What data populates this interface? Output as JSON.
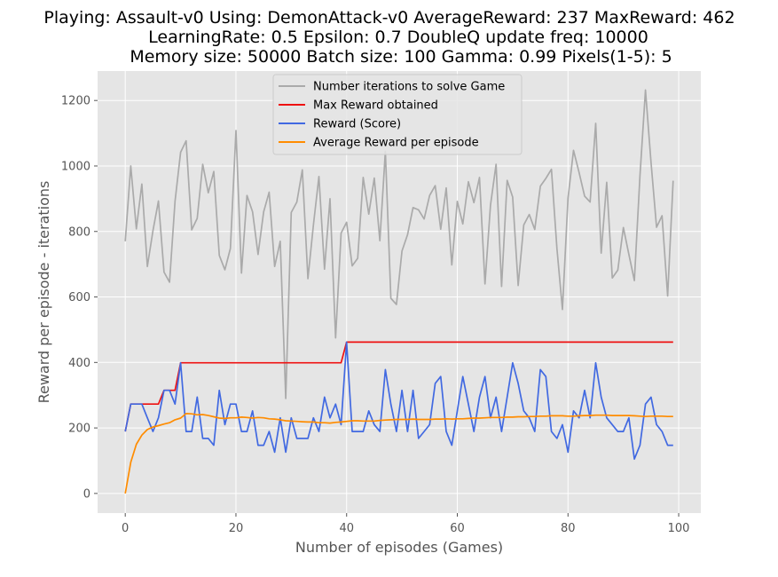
{
  "chart_data": {
    "type": "line",
    "title_lines": [
      "Playing: Assault-v0 Using: DemonAttack-v0 AverageReward: 237 MaxReward: 462",
      "LearningRate: 0.5 Epsilon: 0.7 DoubleQ update freq: 10000",
      "Memory size: 50000 Batch size: 100 Gamma: 0.99 Pixels(1-5): 5"
    ],
    "xlabel": "Number of episodes (Games)",
    "ylabel": "Reward per episode - iterations",
    "xlim": [
      -5,
      104
    ],
    "ylim": [
      -60,
      1290
    ],
    "xticks": [
      0,
      20,
      40,
      60,
      80,
      100
    ],
    "yticks": [
      0,
      200,
      400,
      600,
      800,
      1000,
      1200
    ],
    "grid": true,
    "legend_position": "top-center",
    "x": [
      0,
      1,
      2,
      3,
      4,
      5,
      6,
      7,
      8,
      9,
      10,
      11,
      12,
      13,
      14,
      15,
      16,
      17,
      18,
      19,
      20,
      21,
      22,
      23,
      24,
      25,
      26,
      27,
      28,
      29,
      30,
      31,
      32,
      33,
      34,
      35,
      36,
      37,
      38,
      39,
      40,
      41,
      42,
      43,
      44,
      45,
      46,
      47,
      48,
      49,
      50,
      51,
      52,
      53,
      54,
      55,
      56,
      57,
      58,
      59,
      60,
      61,
      62,
      63,
      64,
      65,
      66,
      67,
      68,
      69,
      70,
      71,
      72,
      73,
      74,
      75,
      76,
      77,
      78,
      79,
      80,
      81,
      82,
      83,
      84,
      85,
      86,
      87,
      88,
      89,
      90,
      91,
      92,
      93,
      94,
      95,
      96,
      97,
      98,
      99
    ],
    "series": [
      {
        "name": "Number iterations to solve Game",
        "color": "#aaaaaa",
        "values": [
          770,
          1000,
          808,
          945,
          693,
          802,
          893,
          676,
          645,
          892,
          1042,
          1077,
          805,
          840,
          1005,
          918,
          983,
          727,
          683,
          748,
          1108,
          673,
          910,
          860,
          730,
          860,
          920,
          693,
          770,
          290,
          858,
          890,
          988,
          656,
          820,
          968,
          685,
          900,
          475,
          795,
          828,
          695,
          718,
          965,
          853,
          963,
          772,
          1045,
          596,
          577,
          740,
          790,
          873,
          866,
          838,
          910,
          940,
          807,
          933,
          698,
          892,
          823,
          952,
          888,
          965,
          640,
          880,
          1005,
          632,
          956,
          905,
          635,
          820,
          852,
          806,
          938,
          962,
          990,
          748,
          562,
          902,
          1048,
          980,
          908,
          890,
          1130,
          734,
          950,
          658,
          682,
          812,
          730,
          650,
          970,
          1232,
          1010,
          813,
          848,
          603,
          955
        ]
      },
      {
        "name": "Max Reward obtained",
        "color": "#ee1111",
        "values": [
          189,
          273,
          273,
          273,
          273,
          273,
          273,
          315,
          315,
          315,
          399,
          399,
          399,
          399,
          399,
          399,
          399,
          399,
          399,
          399,
          399,
          399,
          399,
          399,
          399,
          399,
          399,
          399,
          399,
          399,
          399,
          399,
          399,
          399,
          399,
          399,
          399,
          399,
          399,
          399,
          462,
          462,
          462,
          462,
          462,
          462,
          462,
          462,
          462,
          462,
          462,
          462,
          462,
          462,
          462,
          462,
          462,
          462,
          462,
          462,
          462,
          462,
          462,
          462,
          462,
          462,
          462,
          462,
          462,
          462,
          462,
          462,
          462,
          462,
          462,
          462,
          462,
          462,
          462,
          462,
          462,
          462,
          462,
          462,
          462,
          462,
          462,
          462,
          462,
          462,
          462,
          462,
          462,
          462,
          462,
          462,
          462,
          462,
          462,
          462
        ]
      },
      {
        "name": "Reward (Score)",
        "color": "#4169e1",
        "values": [
          189,
          273,
          273,
          273,
          231,
          189,
          231,
          315,
          315,
          273,
          399,
          189,
          189,
          294,
          168,
          168,
          147,
          315,
          210,
          273,
          273,
          189,
          189,
          252,
          147,
          147,
          189,
          126,
          231,
          126,
          231,
          168,
          168,
          168,
          231,
          189,
          294,
          231,
          273,
          210,
          462,
          189,
          189,
          189,
          252,
          210,
          189,
          378,
          273,
          189,
          315,
          189,
          315,
          168,
          189,
          210,
          336,
          357,
          189,
          147,
          252,
          357,
          273,
          189,
          294,
          357,
          231,
          294,
          189,
          294,
          399,
          336,
          252,
          231,
          189,
          378,
          357,
          189,
          168,
          210,
          126,
          252,
          231,
          315,
          231,
          399,
          294,
          231,
          210,
          189,
          189,
          231,
          105,
          147,
          273,
          294,
          210,
          189,
          147,
          147
        ]
      },
      {
        "name": "Average Reward per episode",
        "color": "#ff8c00",
        "values": [
          0,
          95,
          150,
          178,
          195,
          203,
          207,
          212,
          216,
          225,
          230,
          244,
          243,
          240,
          241,
          238,
          234,
          230,
          229,
          231,
          231,
          233,
          232,
          230,
          232,
          231,
          228,
          227,
          225,
          222,
          221,
          220,
          219,
          218,
          218,
          216,
          216,
          215,
          217,
          218,
          220,
          222,
          222,
          221,
          221,
          221,
          223,
          224,
          225,
          226,
          226,
          226,
          227,
          226,
          226,
          226,
          227,
          227,
          228,
          227,
          228,
          228,
          229,
          230,
          230,
          231,
          232,
          232,
          232,
          233,
          233,
          234,
          234,
          235,
          235,
          236,
          236,
          237,
          237,
          237,
          236,
          236,
          237,
          238,
          238,
          239,
          239,
          239,
          238,
          238,
          238,
          238,
          237,
          236,
          235,
          236,
          236,
          236,
          235,
          235
        ]
      }
    ]
  }
}
